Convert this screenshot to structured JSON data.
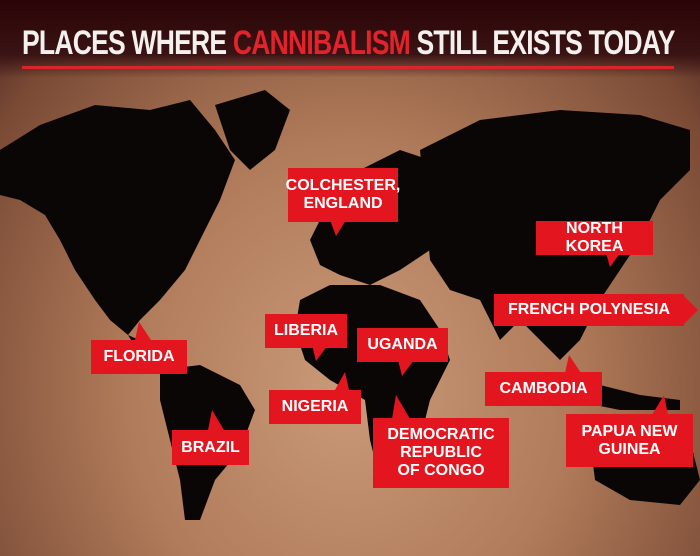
{
  "title": {
    "part1": "PLACES WHERE ",
    "highlight": "CANNIBALISM",
    "part2": " STILL EXISTS TODAY"
  },
  "colors": {
    "accent": "#e3161f",
    "land": "#0b0606",
    "header": "#2a0406"
  },
  "locations": [
    {
      "label": "COLCHESTER,\nENGLAND"
    },
    {
      "label": "NORTH KOREA"
    },
    {
      "label": "FRENCH POLYNESIA"
    },
    {
      "label": "LIBERIA"
    },
    {
      "label": "UGANDA"
    },
    {
      "label": "FLORIDA"
    },
    {
      "label": "NIGERIA"
    },
    {
      "label": "CAMBODIA"
    },
    {
      "label": "BRAZIL"
    },
    {
      "label": "DEMOCRATIC\nREPUBLIC\nOF CONGO"
    },
    {
      "label": "PAPUA NEW\nGUINEA"
    }
  ]
}
